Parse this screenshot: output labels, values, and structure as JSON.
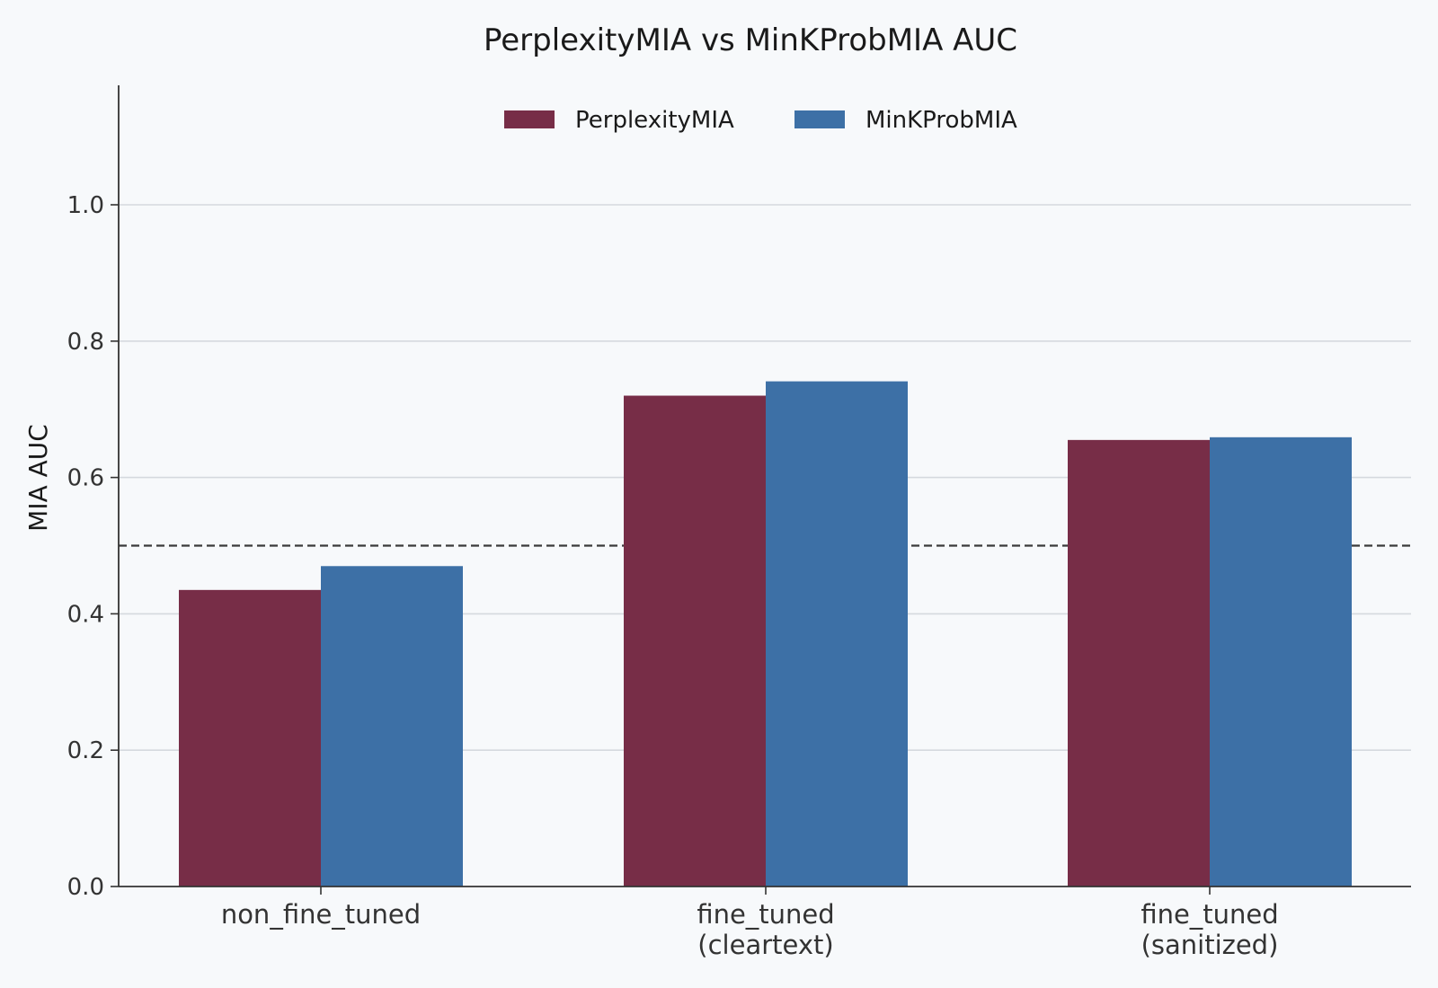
{
  "chart_data": {
    "type": "bar",
    "title": "PerplexityMIA vs MinKProbMIA AUC",
    "xlabel": "",
    "ylabel": "MIA AUC",
    "categories": [
      [
        "non_fine_tuned"
      ],
      [
        "fine_tuned",
        "(cleartext)"
      ],
      [
        "fine_tuned",
        "(sanitized)"
      ]
    ],
    "series": [
      {
        "name": "PerplexityMIA",
        "color": "#772d47",
        "values": [
          0.435,
          0.72,
          0.655
        ]
      },
      {
        "name": "MinKProbMIA",
        "color": "#3d70a6",
        "values": [
          0.47,
          0.741,
          0.659
        ]
      }
    ],
    "ylim": [
      0,
      1.18
    ],
    "yticks": [
      0.0,
      0.2,
      0.4,
      0.6,
      0.8,
      1.0
    ],
    "ytick_labels": [
      "0.0",
      "0.2",
      "0.4",
      "0.6",
      "0.8",
      "1.0"
    ],
    "reference_line": {
      "y": 0.5,
      "style": "dashed",
      "color": "#3a3a3a"
    },
    "grid": "horizontal",
    "legend": "top-center"
  }
}
